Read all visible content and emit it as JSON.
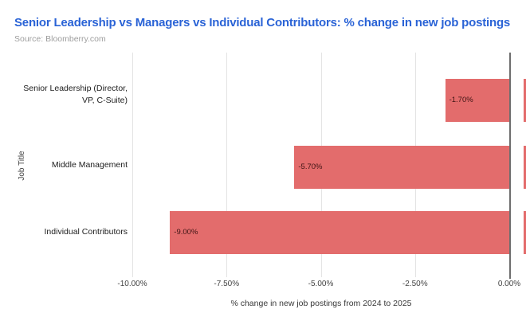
{
  "chart_data": {
    "type": "bar",
    "orientation": "horizontal",
    "title": "Senior Leadership vs Managers vs Individual Contributors: % change in new job postings",
    "source": "Source: Bloomberry.com",
    "ylabel": "Job Title",
    "xlabel": "% change in new job postings from 2024 to 2025",
    "categories": [
      "Senior Leadership (Director, VP, C-Suite)",
      "Middle Management",
      "Individual Contributors"
    ],
    "values": [
      -1.7,
      -5.7,
      -9.0
    ],
    "value_labels": [
      "-1.70%",
      "-5.70%",
      "-9.00%"
    ],
    "x_ticks": [
      {
        "label": "-10.00%",
        "value": -10
      },
      {
        "label": "-7.50%",
        "value": -7.5
      },
      {
        "label": "-5.00%",
        "value": -5
      },
      {
        "label": "-2.50%",
        "value": -2.5
      },
      {
        "label": "0.00%",
        "value": 0
      }
    ],
    "xlim": [
      -10,
      0.42
    ],
    "grid": true,
    "legend": false,
    "colors": {
      "bar": "#e36c6c",
      "title": "#2a63d6",
      "source_text": "#9e9e9e",
      "gridline": "#e4e4e4",
      "zero_axis": "#6e6e6e",
      "bar_value_text": "#3e1414"
    }
  }
}
